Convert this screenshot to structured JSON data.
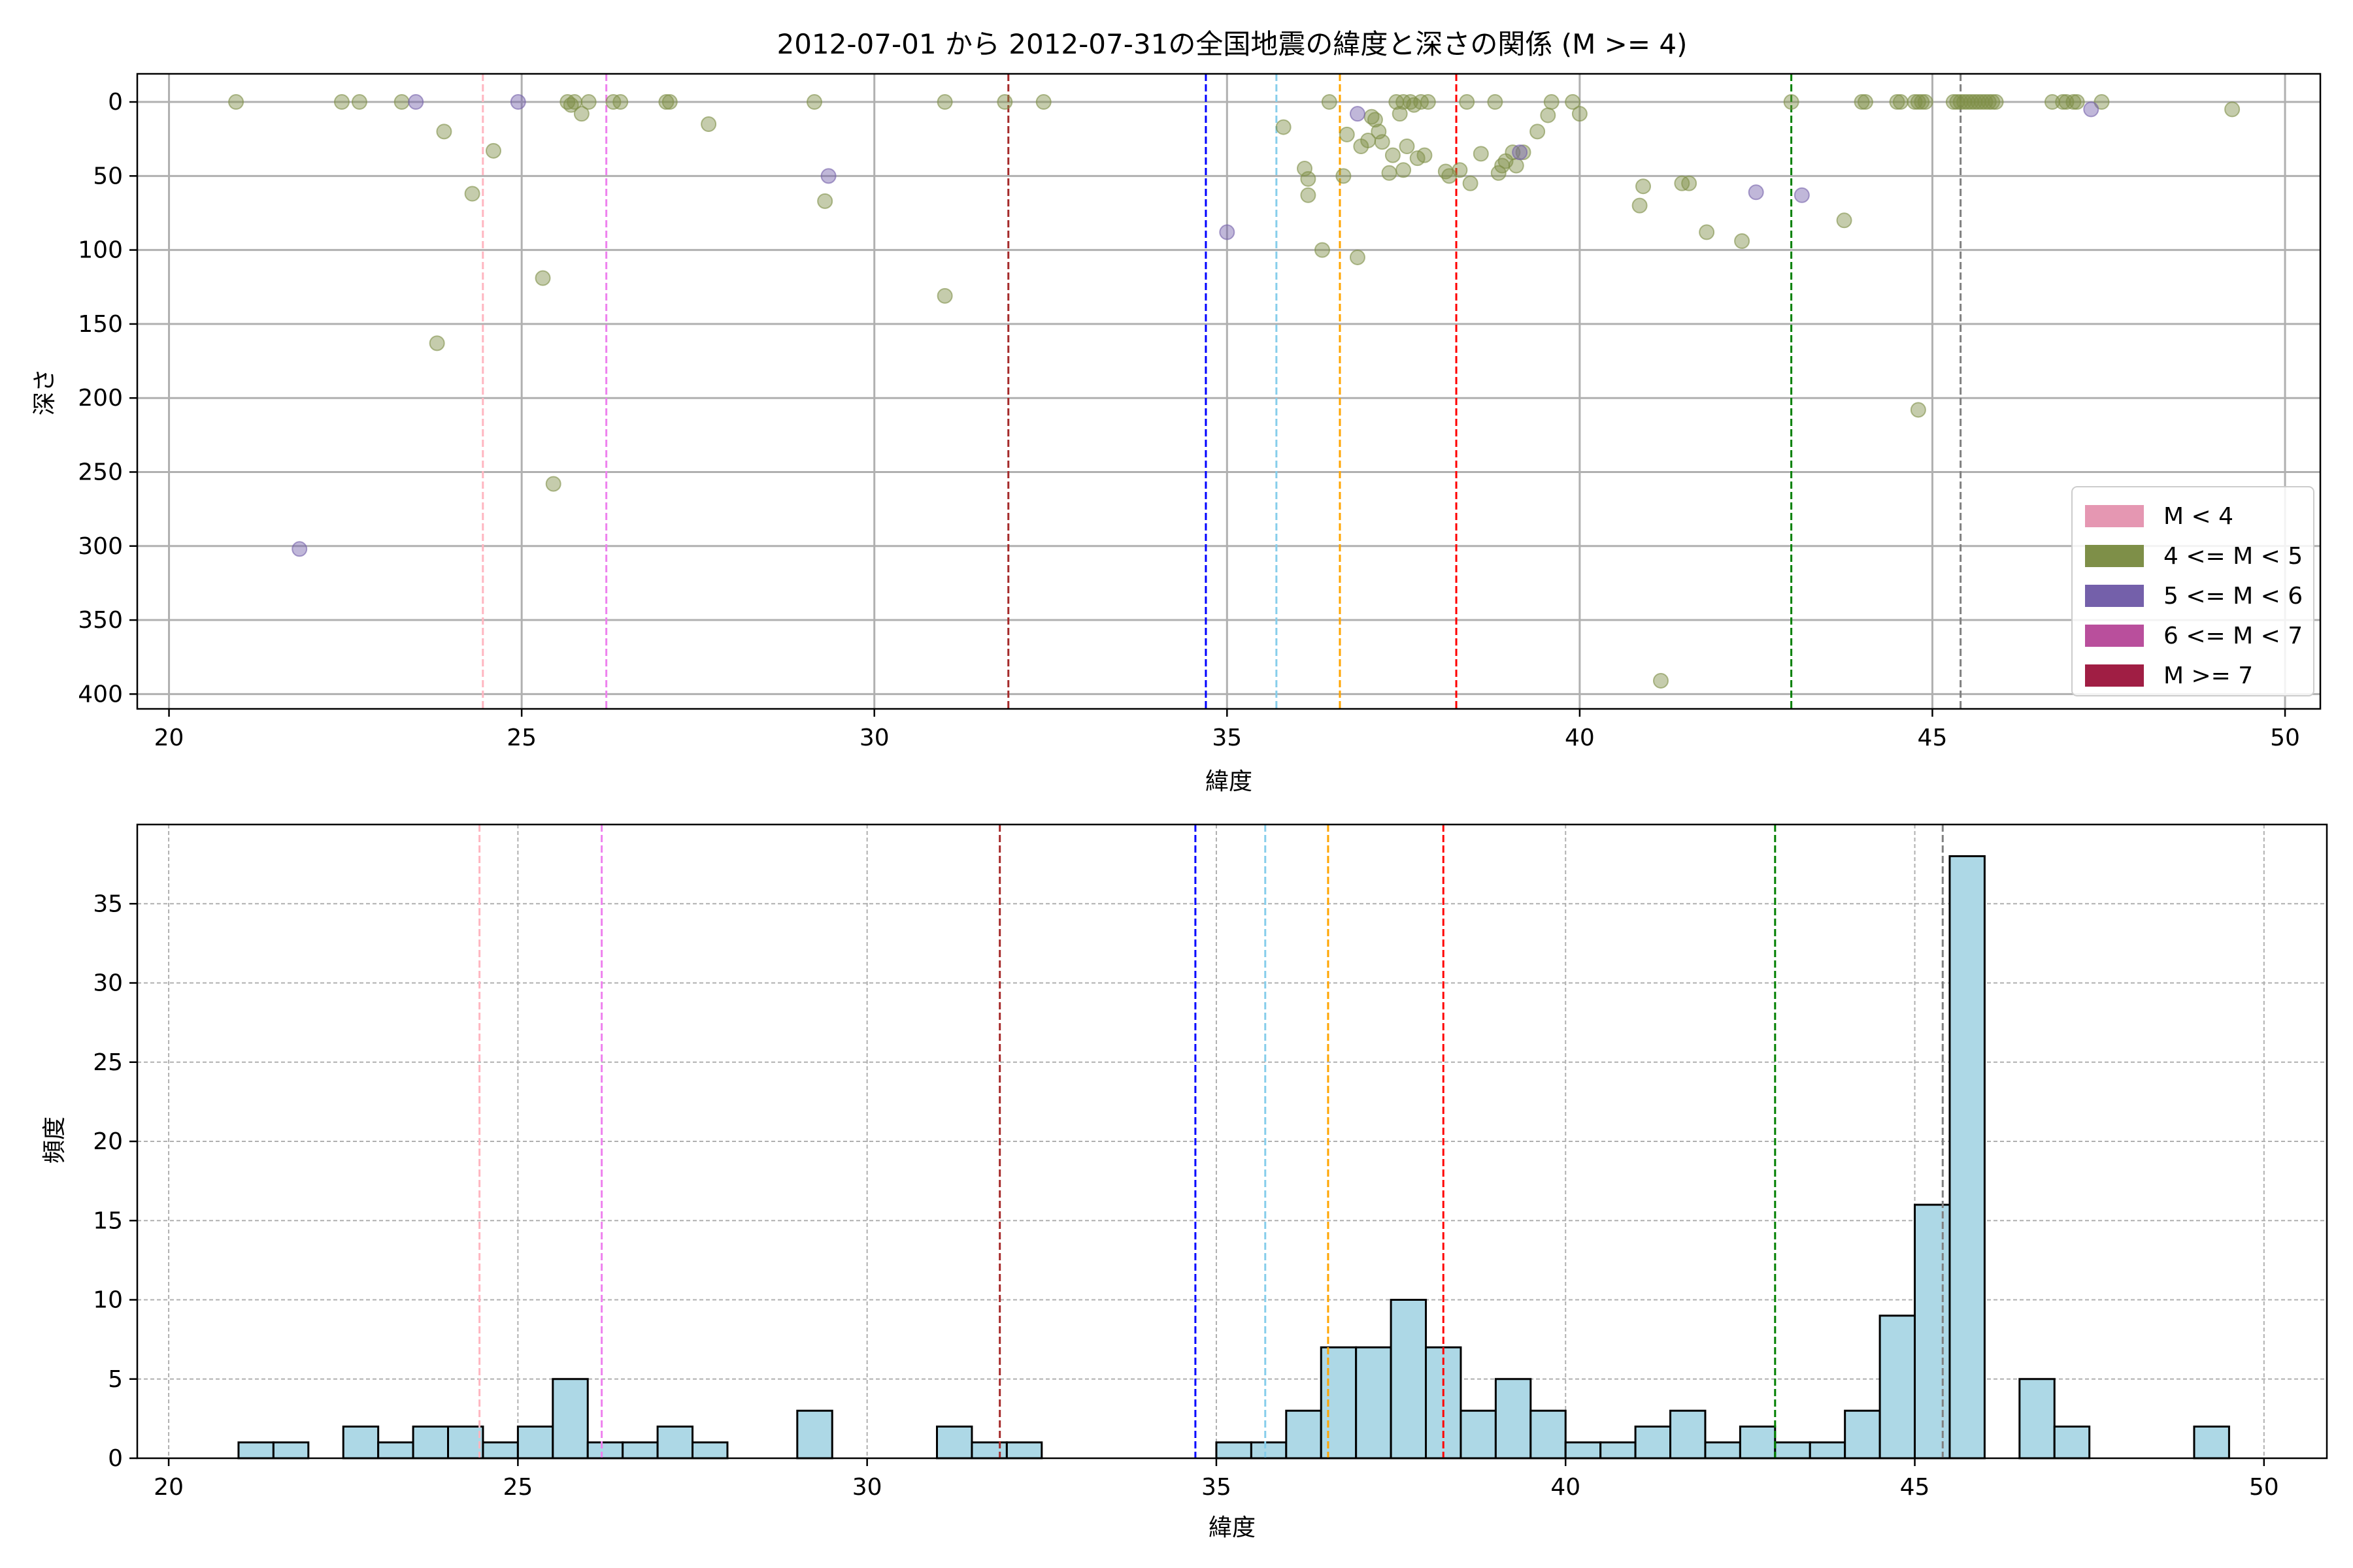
{
  "figure": {
    "title": "2012-07-01 から 2012-07-31の全国地震の緯度と深さの関係 (M >= 4)"
  },
  "colors": {
    "vline_palette": {
      "pink": "#ffb6c1",
      "violet": "#ee82ee",
      "darkred": "#a52a2a",
      "blue": "#0000ff",
      "skyblue": "#87ceeb",
      "orange": "#ffa500",
      "red": "#ff0000",
      "green": "#008000",
      "gray": "#808080"
    },
    "hist_fill": "#add8e6",
    "hist_edge": "#000000",
    "grid": "#b0b0b0"
  },
  "vertical_lines": [
    {
      "x": 24.45,
      "color": "pink"
    },
    {
      "x": 26.2,
      "color": "violet"
    },
    {
      "x": 31.9,
      "color": "darkred"
    },
    {
      "x": 34.7,
      "color": "blue"
    },
    {
      "x": 35.7,
      "color": "skyblue"
    },
    {
      "x": 36.6,
      "color": "orange"
    },
    {
      "x": 38.25,
      "color": "red"
    },
    {
      "x": 43.0,
      "color": "green"
    },
    {
      "x": 45.4,
      "color": "gray"
    }
  ],
  "chart_data": [
    {
      "type": "scatter",
      "xlabel": "緯度",
      "ylabel": "深さ",
      "xlim": [
        19.55,
        50.5
      ],
      "ylim": [
        410,
        -19
      ],
      "y_inverted": true,
      "xticks": [
        20,
        25,
        30,
        35,
        40,
        45,
        50
      ],
      "yticks": [
        0,
        50,
        100,
        150,
        200,
        250,
        300,
        350,
        400
      ],
      "grid": true,
      "legend_position": "lower-right",
      "legend": [
        {
          "label": "M < 4",
          "color": "#e597b2"
        },
        {
          "label": "4 <= M < 5",
          "color": "#7e8f48"
        },
        {
          "label": "5 <= M < 6",
          "color": "#7460aa"
        },
        {
          "label": "6 <= M < 7",
          "color": "#b94f9c"
        },
        {
          "label": "M >= 7",
          "color": "#a01e44"
        }
      ],
      "series": [
        {
          "name": "4 <= M < 5",
          "color": "#7e8f48",
          "points": [
            [
              20.95,
              0
            ],
            [
              22.45,
              0
            ],
            [
              22.7,
              0
            ],
            [
              23.3,
              0
            ],
            [
              23.9,
              20
            ],
            [
              24.3,
              62
            ],
            [
              24.6,
              33
            ],
            [
              23.8,
              163
            ],
            [
              25.3,
              119
            ],
            [
              25.45,
              258
            ],
            [
              25.65,
              0
            ],
            [
              25.7,
              2
            ],
            [
              25.75,
              0
            ],
            [
              25.85,
              8
            ],
            [
              25.95,
              0
            ],
            [
              26.3,
              0
            ],
            [
              26.4,
              0
            ],
            [
              27.05,
              0
            ],
            [
              27.1,
              0
            ],
            [
              27.65,
              15
            ],
            [
              29.15,
              0
            ],
            [
              29.3,
              67
            ],
            [
              31.0,
              0
            ],
            [
              31.0,
              131
            ],
            [
              31.85,
              0
            ],
            [
              32.4,
              0
            ],
            [
              35.8,
              17
            ],
            [
              36.45,
              0
            ],
            [
              36.1,
              45
            ],
            [
              36.15,
              52
            ],
            [
              36.15,
              63
            ],
            [
              36.35,
              100
            ],
            [
              36.65,
              50
            ],
            [
              36.7,
              22
            ],
            [
              36.85,
              105
            ],
            [
              36.9,
              30
            ],
            [
              37.0,
              26
            ],
            [
              37.05,
              10
            ],
            [
              37.1,
              12
            ],
            [
              37.15,
              20
            ],
            [
              37.2,
              27
            ],
            [
              37.3,
              48
            ],
            [
              37.35,
              36
            ],
            [
              37.4,
              0
            ],
            [
              37.45,
              8
            ],
            [
              37.5,
              0
            ],
            [
              37.5,
              46
            ],
            [
              37.55,
              30
            ],
            [
              37.6,
              0
            ],
            [
              37.65,
              2
            ],
            [
              37.7,
              38
            ],
            [
              37.75,
              0
            ],
            [
              37.8,
              36
            ],
            [
              37.85,
              0
            ],
            [
              38.1,
              47
            ],
            [
              38.15,
              50
            ],
            [
              38.3,
              46
            ],
            [
              38.4,
              0
            ],
            [
              38.45,
              55
            ],
            [
              38.6,
              35
            ],
            [
              38.8,
              0
            ],
            [
              38.85,
              48
            ],
            [
              38.9,
              43
            ],
            [
              38.95,
              40
            ],
            [
              39.05,
              34
            ],
            [
              39.1,
              43
            ],
            [
              39.2,
              34
            ],
            [
              39.4,
              20
            ],
            [
              39.55,
              9
            ],
            [
              39.6,
              0
            ],
            [
              39.9,
              0
            ],
            [
              40.0,
              8
            ],
            [
              40.85,
              70
            ],
            [
              40.9,
              57
            ],
            [
              41.15,
              391
            ],
            [
              41.45,
              55
            ],
            [
              41.55,
              55
            ],
            [
              41.8,
              88
            ],
            [
              42.3,
              94
            ],
            [
              43.0,
              0
            ],
            [
              43.75,
              80
            ],
            [
              44.0,
              0
            ],
            [
              44.05,
              0
            ],
            [
              44.5,
              0
            ],
            [
              44.55,
              0
            ],
            [
              44.75,
              0
            ],
            [
              44.8,
              0
            ],
            [
              44.85,
              0
            ],
            [
              44.9,
              0
            ],
            [
              44.8,
              208
            ],
            [
              45.3,
              0
            ],
            [
              45.35,
              0
            ],
            [
              45.4,
              0
            ],
            [
              45.45,
              0
            ],
            [
              45.5,
              0
            ],
            [
              45.55,
              0
            ],
            [
              45.6,
              0
            ],
            [
              45.65,
              0
            ],
            [
              45.7,
              0
            ],
            [
              45.75,
              0
            ],
            [
              45.8,
              0
            ],
            [
              45.85,
              0
            ],
            [
              45.9,
              0
            ],
            [
              46.7,
              0
            ],
            [
              46.85,
              0
            ],
            [
              46.9,
              0
            ],
            [
              47.0,
              0
            ],
            [
              47.05,
              0
            ],
            [
              47.4,
              0
            ],
            [
              49.25,
              5
            ]
          ]
        },
        {
          "name": "5 <= M < 6",
          "color": "#7460aa",
          "points": [
            [
              21.85,
              302
            ],
            [
              23.5,
              0
            ],
            [
              24.95,
              0
            ],
            [
              29.35,
              50
            ],
            [
              35.0,
              88
            ],
            [
              36.85,
              8
            ],
            [
              39.15,
              34
            ],
            [
              42.5,
              61
            ],
            [
              43.15,
              63
            ],
            [
              47.25,
              5
            ]
          ]
        }
      ]
    },
    {
      "type": "bar",
      "subtype": "histogram",
      "xlabel": "緯度",
      "ylabel": "頻度",
      "xlim": [
        19.55,
        50.9
      ],
      "ylim": [
        0,
        40
      ],
      "xticks": [
        20,
        25,
        30,
        35,
        40,
        45,
        50
      ],
      "yticks": [
        0,
        5,
        10,
        15,
        20,
        25,
        30,
        35
      ],
      "grid": true,
      "grid_style": "dashed",
      "bin_width": 0.5,
      "bins": [
        [
          21.0,
          1
        ],
        [
          21.5,
          1
        ],
        [
          22.5,
          2
        ],
        [
          23.0,
          1
        ],
        [
          23.5,
          2
        ],
        [
          24.0,
          2
        ],
        [
          24.5,
          1
        ],
        [
          25.0,
          2
        ],
        [
          25.5,
          5
        ],
        [
          26.0,
          1
        ],
        [
          26.5,
          1
        ],
        [
          27.0,
          2
        ],
        [
          27.5,
          1
        ],
        [
          29.0,
          3
        ],
        [
          31.0,
          2
        ],
        [
          31.5,
          1
        ],
        [
          32.0,
          1
        ],
        [
          35.0,
          1
        ],
        [
          35.5,
          1
        ],
        [
          36.0,
          3
        ],
        [
          36.5,
          7
        ],
        [
          37.0,
          7
        ],
        [
          37.5,
          10
        ],
        [
          38.0,
          7
        ],
        [
          38.5,
          3
        ],
        [
          39.0,
          5
        ],
        [
          39.5,
          3
        ],
        [
          40.0,
          1
        ],
        [
          40.5,
          1
        ],
        [
          41.0,
          2
        ],
        [
          41.5,
          3
        ],
        [
          42.0,
          1
        ],
        [
          42.5,
          2
        ],
        [
          43.0,
          1
        ],
        [
          43.5,
          1
        ],
        [
          44.0,
          3
        ],
        [
          44.5,
          9
        ],
        [
          45.0,
          16
        ],
        [
          45.5,
          38
        ],
        [
          46.5,
          5
        ],
        [
          47.0,
          2
        ],
        [
          49.0,
          2
        ]
      ]
    }
  ]
}
